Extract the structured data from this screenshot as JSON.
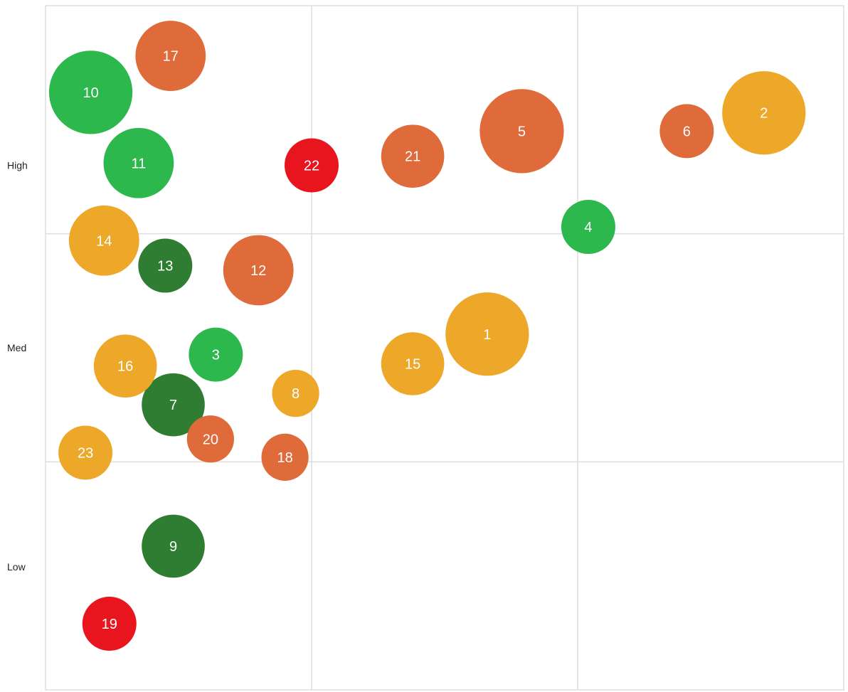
{
  "chart_data": {
    "type": "scatter",
    "title": "",
    "xlabel": "",
    "ylabel": "",
    "xlim": [
      0,
      3
    ],
    "ylim": [
      0,
      3
    ],
    "grid": true,
    "y_tick_labels": [
      {
        "label": "High",
        "y": 2.3
      },
      {
        "label": "Med",
        "y": 1.5
      },
      {
        "label": "Low",
        "y": 0.54
      }
    ],
    "colors": {
      "bright_green": "#2DB84D",
      "dark_green": "#2E7D32",
      "orange": "#E06B3A",
      "amber": "#EDA82A",
      "red": "#E8141E",
      "grid": "#dddddd"
    },
    "points": [
      {
        "label": "1",
        "x": 1.66,
        "y": 1.56,
        "size": 2.38,
        "color": "amber"
      },
      {
        "label": "2",
        "x": 2.7,
        "y": 2.53,
        "size": 2.38,
        "color": "amber"
      },
      {
        "label": "3",
        "x": 0.64,
        "y": 1.47,
        "size": 1.0,
        "color": "bright_green"
      },
      {
        "label": "4",
        "x": 2.04,
        "y": 2.03,
        "size": 1.0,
        "color": "bright_green"
      },
      {
        "label": "5",
        "x": 1.79,
        "y": 2.45,
        "size": 2.42,
        "color": "orange"
      },
      {
        "label": "6",
        "x": 2.41,
        "y": 2.45,
        "size": 1.0,
        "color": "orange"
      },
      {
        "label": "7",
        "x": 0.48,
        "y": 1.25,
        "size": 1.36,
        "color": "dark_green"
      },
      {
        "label": "8",
        "x": 0.94,
        "y": 1.3,
        "size": 0.76,
        "color": "amber"
      },
      {
        "label": "9",
        "x": 0.48,
        "y": 0.63,
        "size": 1.36,
        "color": "dark_green"
      },
      {
        "label": "10",
        "x": 0.17,
        "y": 2.62,
        "size": 2.38,
        "color": "bright_green"
      },
      {
        "label": "11",
        "x": 0.35,
        "y": 2.31,
        "size": 1.69,
        "color": "bright_green"
      },
      {
        "label": "12",
        "x": 0.8,
        "y": 1.84,
        "size": 1.69,
        "color": "orange"
      },
      {
        "label": "13",
        "x": 0.45,
        "y": 1.86,
        "size": 1.0,
        "color": "dark_green"
      },
      {
        "label": "14",
        "x": 0.22,
        "y": 1.97,
        "size": 1.69,
        "color": "amber"
      },
      {
        "label": "15",
        "x": 1.38,
        "y": 1.43,
        "size": 1.36,
        "color": "amber"
      },
      {
        "label": "16",
        "x": 0.3,
        "y": 1.42,
        "size": 1.36,
        "color": "amber"
      },
      {
        "label": "17",
        "x": 0.47,
        "y": 2.78,
        "size": 1.69,
        "color": "orange"
      },
      {
        "label": "18",
        "x": 0.9,
        "y": 1.02,
        "size": 0.76,
        "color": "orange"
      },
      {
        "label": "19",
        "x": 0.24,
        "y": 0.29,
        "size": 1.0,
        "color": "red"
      },
      {
        "label": "20",
        "x": 0.62,
        "y": 1.1,
        "size": 0.76,
        "color": "orange"
      },
      {
        "label": "21",
        "x": 1.38,
        "y": 2.34,
        "size": 1.36,
        "color": "orange"
      },
      {
        "label": "22",
        "x": 1.0,
        "y": 2.3,
        "size": 1.0,
        "color": "red"
      },
      {
        "label": "23",
        "x": 0.15,
        "y": 1.04,
        "size": 1.0,
        "color": "amber"
      }
    ]
  }
}
